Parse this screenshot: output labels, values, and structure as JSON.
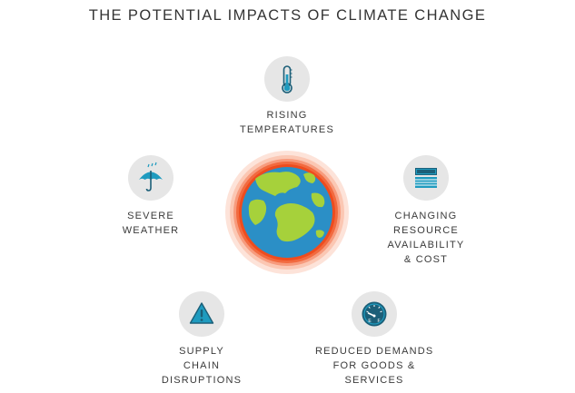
{
  "title": "THE POTENTIAL IMPACTS OF CLIMATE CHANGE",
  "impacts": {
    "rising_temperatures": {
      "lines": [
        "RISING",
        "TEMPERATURES"
      ],
      "icon": "thermometer-icon"
    },
    "severe_weather": {
      "lines": [
        "SEVERE",
        "WEATHER"
      ],
      "icon": "umbrella-icon"
    },
    "changing_resources": {
      "lines": [
        "CHANGING",
        "RESOURCE",
        "AVAILABILITY",
        "& COST"
      ],
      "icon": "money-stack-icon"
    },
    "supply_chain": {
      "lines": [
        "SUPPLY",
        "CHAIN",
        "DISRUPTIONS"
      ],
      "icon": "warning-icon"
    },
    "reduced_demands": {
      "lines": [
        "REDUCED DEMANDS",
        "FOR GOODS &",
        "SERVICES"
      ],
      "icon": "fuel-gauge-icon"
    }
  },
  "colors": {
    "icon_teal": "#1f9bbf",
    "icon_dark": "#1c5f78",
    "circle_bg": "#e6e6e6",
    "ocean": "#2b8fc6",
    "land": "#a6d13b",
    "glow_inner": "#f04a1c",
    "glow_outer": "#fbd2c2"
  }
}
